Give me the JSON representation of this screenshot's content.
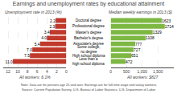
{
  "chart_data": [
    {
      "type": "bar",
      "orientation": "horizontal",
      "title": "Earnings and unemployment rates by educational attainment",
      "subtitle": "Unemployment rate in 2013 (%)",
      "xlabel": "All workers: 6.1%",
      "categories": [
        "Doctoral degree",
        "Professional degree",
        "Master's degree",
        "Bachelor's degree",
        "Associate's degree",
        "Some college,\nno degree",
        "High school diploma",
        "Less than a\nhigh school diploma"
      ],
      "values": [
        2.2,
        2.3,
        3.4,
        4.0,
        5.4,
        7.0,
        7.5,
        11.0
      ],
      "value_labels": [
        "2.2",
        "2.3",
        "3.4",
        "4.0",
        "5.4",
        "7.0",
        "7.5",
        "11.0"
      ],
      "color": "#c0392b",
      "xlim": [
        13,
        0
      ],
      "xticks": [
        0,
        2,
        4,
        6,
        8,
        10,
        12
      ],
      "grid": true,
      "data_labels": true,
      "tick_labels": "x",
      "annotations": [
        "Note: Data are for persons age 25 and over. Earnings are for full-time wage and salary workers.",
        "Source: Current Population Survey, U.S. Bureau of Labor Statistics, U.S. Department of Labor"
      ]
    },
    {
      "type": "bar",
      "orientation": "horizontal",
      "subtitle": "Median weekly earnings in 2013 ($)",
      "xlabel": "All workers: $827",
      "categories": [
        "Doctoral degree",
        "Professional degree",
        "Master's degree",
        "Bachelor's degree",
        "Associate's degree",
        "Some college,\nno degree",
        "High school diploma",
        "Less than a\nhigh school diploma"
      ],
      "values": [
        1623,
        1714,
        1329,
        1108,
        777,
        727,
        651,
        472
      ],
      "color": "#7db843",
      "xlim": [
        0,
        2000
      ],
      "xticks": [
        0,
        500,
        {
          "value": 1000,
          "label": "1,000"
        },
        {
          "value": 1500,
          "label": "1,500"
        }
      ],
      "grid": true,
      "data_labels": true,
      "tick_labels": "x"
    }
  ]
}
